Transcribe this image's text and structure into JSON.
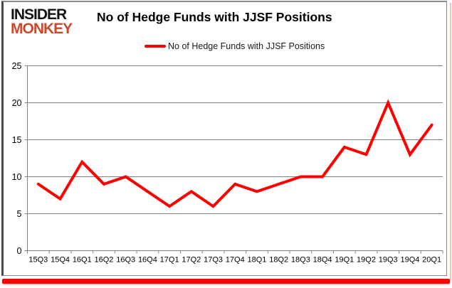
{
  "header": {
    "logo_line1": "INSIDER",
    "logo_line2": "MONKEY",
    "title": "No of Hedge Funds with JJSF Positions"
  },
  "legend": {
    "label": "No of Hedge Funds with JJSF Positions"
  },
  "colors": {
    "line": "#fe0000",
    "grid": "#808080",
    "axis": "#808080",
    "tick_text": "#000000",
    "logo_black": "#141414",
    "logo_red": "#c74a2c",
    "bottom_bar": "#fe0000"
  },
  "chart_data": {
    "type": "line",
    "title": "No of Hedge Funds with JJSF Positions",
    "categories": [
      "15Q3",
      "15Q4",
      "16Q1",
      "16Q2",
      "16Q3",
      "16Q4",
      "17Q1",
      "17Q2",
      "17Q3",
      "17Q4",
      "18Q1",
      "18Q2",
      "18Q3",
      "18Q4",
      "19Q1",
      "19Q2",
      "19Q3",
      "19Q4",
      "20Q1"
    ],
    "series": [
      {
        "name": "No of Hedge Funds with JJSF Positions",
        "values": [
          9,
          7,
          12,
          9,
          10,
          8,
          6,
          8,
          6,
          9,
          8,
          9,
          10,
          10,
          14,
          13,
          20,
          13,
          17
        ]
      }
    ],
    "xlabel": "",
    "ylabel": "",
    "ylim": [
      0,
      25
    ],
    "yticks": [
      0,
      5,
      10,
      15,
      20,
      25
    ],
    "grid": true,
    "legend_position": "top-center"
  }
}
